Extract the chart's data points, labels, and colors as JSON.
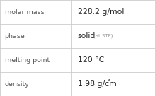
{
  "rows": [
    {
      "label": "molar mass",
      "value": "228.2 g/mol",
      "superscript": null,
      "note": null
    },
    {
      "label": "phase",
      "value": "solid",
      "superscript": null,
      "note": "(at STP)"
    },
    {
      "label": "melting point",
      "value": "120 °C",
      "superscript": null,
      "note": null
    },
    {
      "label": "density",
      "value": "1.98 g/cm",
      "superscript": "3",
      "note": null
    }
  ],
  "bg_color": "#ffffff",
  "border_color": "#cccccc",
  "label_color": "#555555",
  "value_color": "#222222",
  "note_color": "#999999",
  "label_fontsize": 6.8,
  "value_fontsize": 7.8,
  "note_fontsize": 5.0,
  "super_fontsize": 5.0,
  "col_split": 0.46
}
